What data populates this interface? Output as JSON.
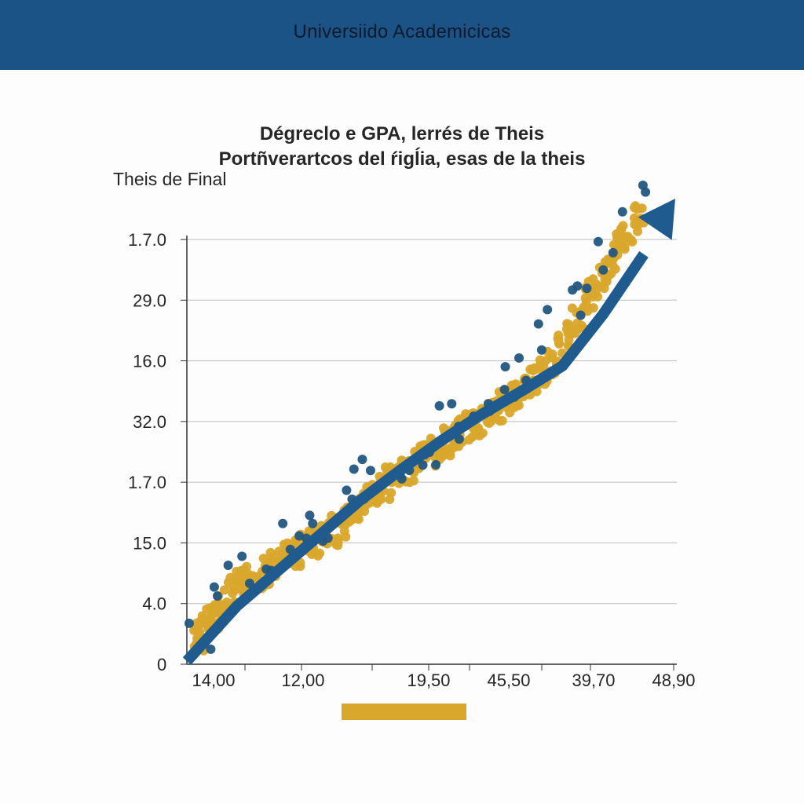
{
  "header": {
    "title": "Universiido Academicicas"
  },
  "chart_data": {
    "type": "scatter",
    "title": "Dégreclo e GPA, lerrés de Theis",
    "subtitle": "Portñverartcos del ŕigĺia, esas de la theis",
    "ylabel": "Theis de Final",
    "xlabel": "",
    "y_tick_labels": [
      "0",
      "4.0",
      "15.0",
      "1.7.0",
      "32.0",
      "16.0",
      "29.0",
      "1.7.0"
    ],
    "x_tick_labels": [
      "14,00",
      "12,00",
      "19,50",
      "45,50",
      "39,70",
      "48,90"
    ],
    "grid": true,
    "legend": "bottom-center",
    "series": [
      {
        "color": "#d9a72b",
        "points": [
          [
            0.05,
            0.3
          ],
          [
            0.08,
            0.5
          ],
          [
            0.1,
            0.6
          ],
          [
            0.12,
            0.4
          ],
          [
            0.15,
            0.8
          ],
          [
            0.2,
            1.0
          ],
          [
            0.25,
            1.1
          ],
          [
            0.3,
            1.0
          ],
          [
            0.35,
            1.3
          ],
          [
            0.4,
            1.5
          ],
          [
            0.5,
            1.7
          ],
          [
            0.6,
            1.9
          ],
          [
            0.7,
            2.0
          ],
          [
            0.8,
            2.3
          ],
          [
            0.9,
            2.4
          ],
          [
            1.0,
            2.5
          ],
          [
            1.1,
            2.8
          ],
          [
            1.2,
            3.0
          ],
          [
            1.3,
            3.3
          ],
          [
            1.4,
            3.6
          ],
          [
            1.5,
            3.7
          ],
          [
            1.6,
            4.0
          ],
          [
            1.7,
            4.3
          ],
          [
            1.8,
            4.4
          ],
          [
            1.9,
            4.5
          ],
          [
            2.0,
            4.5
          ],
          [
            2.1,
            4.5
          ],
          [
            2.2,
            4.7
          ],
          [
            2.3,
            4.9
          ],
          [
            2.4,
            4.9
          ],
          [
            2.5,
            5.1
          ],
          [
            2.6,
            5.2
          ],
          [
            2.7,
            5.2
          ],
          [
            2.8,
            5.4
          ],
          [
            2.9,
            5.7
          ],
          [
            3.0,
            5.6
          ],
          [
            3.1,
            5.6
          ],
          [
            3.2,
            5.8
          ],
          [
            3.3,
            6.0
          ],
          [
            3.4,
            6.1
          ],
          [
            3.5,
            6.1
          ],
          [
            3.6,
            6.3
          ],
          [
            3.7,
            6.4
          ],
          [
            3.8,
            6.7
          ],
          [
            3.9,
            7.0
          ],
          [
            4.0,
            7.0
          ],
          [
            4.1,
            6.9
          ],
          [
            4.2,
            7.3
          ],
          [
            4.3,
            7.2
          ],
          [
            4.4,
            7.1
          ],
          [
            4.5,
            7.2
          ],
          [
            4.6,
            7.4
          ],
          [
            4.7,
            7.3
          ],
          [
            4.8,
            7.4
          ],
          [
            4.9,
            7.5
          ],
          [
            5.0,
            7.8
          ],
          [
            5.1,
            8.0
          ],
          [
            5.2,
            8.0
          ],
          [
            5.3,
            8.2
          ],
          [
            5.4,
            8.4
          ],
          [
            5.5,
            8.5
          ],
          [
            5.6,
            8.7
          ],
          [
            5.7,
            9.3
          ],
          [
            5.8,
            9.3
          ],
          [
            5.9,
            9.5
          ],
          [
            6.0,
            9.6
          ],
          [
            6.1,
            9.8
          ],
          [
            6.2,
            10.2
          ],
          [
            6.3,
            10.3
          ],
          [
            6.4,
            10.4
          ],
          [
            6.5,
            10.6
          ],
          [
            6.6,
            10.7
          ],
          [
            6.7,
            10.8
          ],
          [
            6.8,
            11.0
          ],
          [
            6.9,
            11.2
          ],
          [
            7.0,
            11.3
          ],
          [
            7.1,
            11.5
          ],
          [
            7.2,
            11.3
          ],
          [
            7.3,
            11.6
          ],
          [
            7.4,
            11.8
          ],
          [
            7.5,
            12.0
          ],
          [
            7.6,
            12.2
          ],
          [
            7.7,
            12.3
          ],
          [
            7.8,
            12.4
          ],
          [
            7.9,
            12.6
          ],
          [
            8.0,
            12.8
          ],
          [
            8.1,
            13.0
          ],
          [
            8.2,
            13.3
          ],
          [
            8.3,
            13.3
          ],
          [
            8.4,
            13.2
          ],
          [
            8.5,
            13.3
          ],
          [
            8.6,
            13.4
          ],
          [
            8.7,
            13.6
          ],
          [
            8.8,
            13.8
          ],
          [
            8.9,
            13.9
          ],
          [
            9.0,
            13.9
          ],
          [
            9.1,
            14.1
          ],
          [
            9.2,
            14.4
          ],
          [
            9.3,
            14.5
          ],
          [
            9.4,
            14.6
          ],
          [
            9.5,
            14.7
          ],
          [
            9.6,
            14.8
          ],
          [
            9.7,
            14.9
          ],
          [
            9.8,
            15.2
          ],
          [
            9.9,
            15.3
          ],
          [
            10.0,
            15.3
          ],
          [
            10.1,
            15.5
          ],
          [
            10.2,
            15.6
          ],
          [
            10.3,
            15.7
          ],
          [
            10.4,
            15.8
          ],
          [
            10.5,
            15.9
          ],
          [
            10.6,
            16.0
          ],
          [
            10.7,
            16.2
          ],
          [
            10.8,
            16.3
          ],
          [
            10.9,
            16.5
          ],
          [
            11.0,
            16.4
          ],
          [
            11.1,
            16.6
          ],
          [
            11.2,
            16.8
          ],
          [
            11.3,
            16.9
          ],
          [
            11.4,
            17.0
          ],
          [
            11.5,
            17.1
          ],
          [
            11.6,
            17.3
          ],
          [
            11.7,
            17.5
          ],
          [
            11.8,
            17.8
          ],
          [
            11.9,
            18.0
          ],
          [
            12.0,
            18.1
          ],
          [
            12.1,
            18.3
          ],
          [
            12.2,
            18.4
          ],
          [
            12.3,
            18.6
          ],
          [
            12.4,
            18.8
          ],
          [
            12.5,
            18.9
          ],
          [
            12.6,
            19.0
          ],
          [
            12.7,
            19.3
          ],
          [
            12.8,
            19.4
          ],
          [
            12.9,
            19.6
          ],
          [
            13.0,
            19.8
          ],
          [
            13.1,
            20.1
          ],
          [
            13.2,
            20.4
          ],
          [
            13.3,
            20.8
          ],
          [
            13.4,
            21.0
          ],
          [
            13.5,
            21.4
          ],
          [
            13.6,
            21.8
          ],
          [
            13.7,
            22.0
          ],
          [
            13.8,
            22.3
          ],
          [
            13.9,
            22.6
          ],
          [
            14.0,
            22.9
          ],
          [
            14.1,
            23.2
          ],
          [
            14.2,
            23.4
          ],
          [
            14.3,
            23.9
          ],
          [
            14.4,
            24.4
          ],
          [
            14.5,
            24.6
          ],
          [
            14.6,
            24.9
          ],
          [
            14.7,
            25.4
          ],
          [
            14.8,
            25.6
          ],
          [
            14.9,
            25.9
          ],
          [
            15.0,
            26.3
          ],
          [
            15.1,
            26.6
          ],
          [
            15.2,
            27.0
          ],
          [
            15.3,
            27.3
          ],
          [
            15.4,
            27.7
          ],
          [
            15.5,
            28.2
          ],
          [
            15.6,
            28.3
          ],
          [
            15.7,
            28.6
          ],
          [
            15.8,
            28.9
          ],
          [
            15.9,
            29.1
          ],
          [
            16.0,
            29.4
          ],
          [
            16.1,
            29.8
          ],
          [
            16.2,
            30.0
          ],
          [
            16.3,
            30.3
          ],
          [
            16.4,
            30.4
          ]
        ]
      },
      {
        "color": "#23567f",
        "points": [
          [
            0.1,
            0.1
          ],
          [
            0.25,
            1.2
          ],
          [
            0.5,
            2.0
          ],
          [
            0.8,
            2.8
          ],
          [
            1.1,
            4.3
          ],
          [
            1.4,
            4.4
          ],
          [
            1.7,
            4.6
          ],
          [
            2.0,
            5.3
          ],
          [
            2.3,
            5.6
          ],
          [
            2.6,
            6.1
          ],
          [
            2.9,
            6.6
          ],
          [
            3.2,
            6.3
          ],
          [
            3.5,
            7.8
          ],
          [
            3.8,
            8.1
          ],
          [
            4.1,
            8.0
          ],
          [
            4.4,
            8.9
          ],
          [
            4.7,
            9.7
          ],
          [
            5.0,
            8.0
          ],
          [
            5.3,
            9.6
          ],
          [
            5.6,
            10.5
          ],
          [
            5.9,
            11.2
          ],
          [
            6.2,
            10.8
          ],
          [
            6.5,
            12.0
          ],
          [
            6.8,
            11.4
          ],
          [
            7.1,
            12.3
          ],
          [
            7.4,
            13.0
          ],
          [
            7.7,
            12.6
          ],
          [
            8.0,
            13.6
          ],
          [
            8.3,
            14.4
          ],
          [
            8.6,
            14.6
          ],
          [
            8.9,
            14.2
          ],
          [
            9.2,
            15.4
          ],
          [
            9.5,
            15.8
          ],
          [
            9.8,
            16.3
          ],
          [
            10.1,
            15.9
          ],
          [
            10.4,
            16.8
          ],
          [
            10.7,
            17.5
          ],
          [
            11.0,
            17.6
          ],
          [
            11.3,
            18.3
          ],
          [
            11.6,
            18.4
          ],
          [
            11.9,
            19.2
          ],
          [
            12.2,
            19.5
          ],
          [
            12.5,
            20.2
          ],
          [
            12.8,
            20.5
          ],
          [
            13.1,
            21.6
          ],
          [
            13.4,
            22.0
          ],
          [
            13.7,
            23.5
          ],
          [
            14.0,
            24.1
          ],
          [
            14.3,
            25.2
          ],
          [
            14.6,
            25.9
          ],
          [
            14.9,
            27.3
          ],
          [
            15.2,
            28.1
          ],
          [
            15.5,
            29.2
          ],
          [
            15.8,
            29.4
          ],
          [
            16.1,
            30.9
          ],
          [
            16.4,
            31.5
          ]
        ]
      }
    ],
    "trend": {
      "color": "#1f5b8e",
      "points": [
        [
          0,
          0
        ],
        [
          1.5,
          2.6
        ],
        [
          3.0,
          5.1
        ],
        [
          4.5,
          7.6
        ],
        [
          6.0,
          10.1
        ],
        [
          7.5,
          12.3
        ],
        [
          9.0,
          14.4
        ],
        [
          10.5,
          16.3
        ],
        [
          12.0,
          18.0
        ],
        [
          13.5,
          19.8
        ],
        [
          15.0,
          23.5
        ],
        [
          16.5,
          27.8
        ]
      ]
    }
  },
  "legend_color": "#d9a72b"
}
